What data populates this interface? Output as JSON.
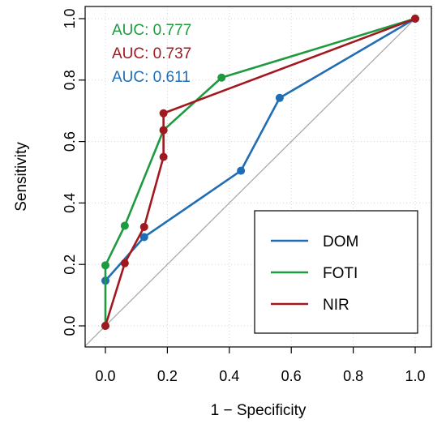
{
  "chart_data": {
    "type": "line",
    "title": "",
    "xlabel": "1 − Specificity",
    "ylabel": "Sensitivity",
    "xlim": [
      0,
      1
    ],
    "ylim": [
      0,
      1
    ],
    "x_ticks": [
      "0.0",
      "0.2",
      "0.4",
      "0.6",
      "0.8",
      "1.0"
    ],
    "y_ticks": [
      "0.0",
      "0.2",
      "0.4",
      "0.6",
      "0.8",
      "1.0"
    ],
    "grid": true,
    "legend_position": "bottom-right",
    "reference_line": {
      "x": [
        0,
        1
      ],
      "y": [
        0,
        1
      ],
      "color": "#a6a6a6"
    },
    "series": [
      {
        "name": "DOM",
        "color": "#1f6db5",
        "auc_label": "AUC: 0.611",
        "x": [
          0.0,
          0.125,
          0.4375,
          0.5625,
          1.0
        ],
        "y": [
          0.147,
          0.289,
          0.505,
          0.742,
          1.0
        ]
      },
      {
        "name": "FOTI",
        "color": "#1e9a3f",
        "auc_label": "AUC: 0.777",
        "x": [
          0.0,
          0.0,
          0.0625,
          0.1875,
          0.375,
          1.0
        ],
        "y": [
          0.0,
          0.197,
          0.326,
          0.637,
          0.808,
          1.0
        ]
      },
      {
        "name": "NIR",
        "color": "#a1191f",
        "auc_label": "AUC: 0.737",
        "x": [
          0.0,
          0.0625,
          0.125,
          0.1875,
          0.1875,
          0.1875,
          1.0
        ],
        "y": [
          0.0,
          0.204,
          0.322,
          0.55,
          0.637,
          0.692,
          1.0
        ]
      }
    ],
    "auc_order": [
      "FOTI",
      "NIR",
      "DOM"
    ],
    "legend_order": [
      "DOM",
      "FOTI",
      "NIR"
    ]
  }
}
